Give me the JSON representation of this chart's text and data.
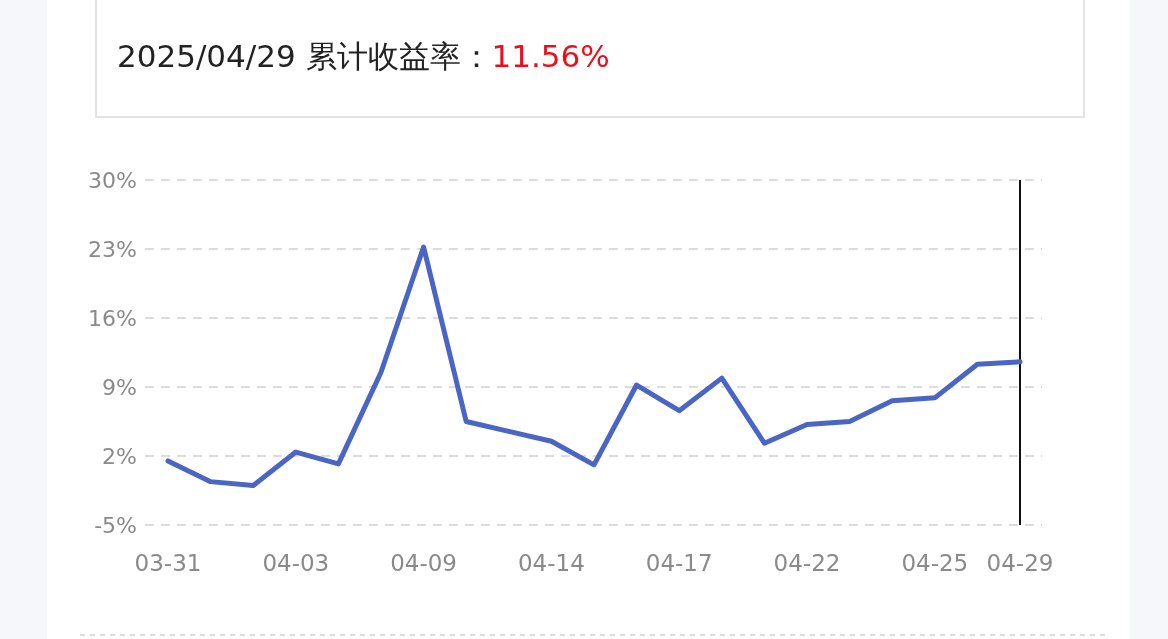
{
  "chart_data": {
    "type": "line",
    "title": "2025/04/29 累计收益率：",
    "annotations": [
      "11.56%"
    ],
    "categories": [
      "03-31",
      null,
      null,
      "04-03",
      null,
      null,
      "04-09",
      null,
      null,
      "04-14",
      null,
      null,
      "04-17",
      null,
      null,
      "04-22",
      null,
      null,
      "04-25",
      null,
      "04-29"
    ],
    "series": [
      {
        "color": "#4a65c4",
        "values": [
          1.5,
          -0.6,
          -1.0,
          2.4,
          1.2,
          10.5,
          23.2,
          5.5,
          4.5,
          3.5,
          1.1,
          9.2,
          6.6,
          9.9,
          3.3,
          5.2,
          5.5,
          7.6,
          7.9,
          11.3,
          11.56
        ]
      }
    ],
    "ylim": [
      -5,
      30
    ],
    "yticks": [
      {
        "value": -5,
        "label": "-5%"
      },
      {
        "value": 2,
        "label": "2%"
      },
      {
        "value": 9,
        "label": "9%"
      },
      {
        "value": 16,
        "label": "16%"
      },
      {
        "value": 23,
        "label": "23%"
      },
      {
        "value": 30,
        "label": "30%"
      }
    ],
    "grid": "y",
    "marker": "none",
    "line_style": "solid",
    "ref_lines": [
      {
        "axis": "x",
        "value": "04-29",
        "color": "#111111"
      }
    ]
  }
}
